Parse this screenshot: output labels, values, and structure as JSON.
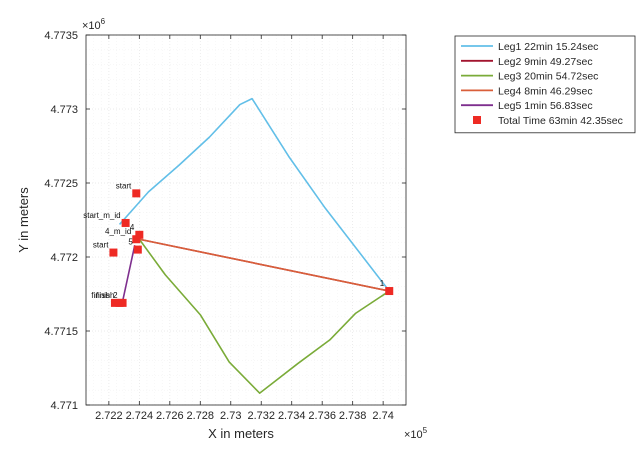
{
  "chart_data": {
    "type": "line",
    "title": "",
    "xlabel": "X in meters",
    "ylabel": "Y in meters",
    "x_exponent_label": "×10",
    "x_exponent": "5",
    "y_exponent_label": "×10",
    "y_exponent": "6",
    "xlim": [
      272050,
      274150
    ],
    "ylim": [
      4771000,
      4773500
    ],
    "grid": true,
    "legend_position": "outside-top-right",
    "x_ticks": [
      {
        "value": 272200,
        "label": "2.722"
      },
      {
        "value": 272400,
        "label": "2.724"
      },
      {
        "value": 272600,
        "label": "2.726"
      },
      {
        "value": 272800,
        "label": "2.728"
      },
      {
        "value": 273000,
        "label": "2.73"
      },
      {
        "value": 273200,
        "label": "2.732"
      },
      {
        "value": 273400,
        "label": "2.734"
      },
      {
        "value": 273600,
        "label": "2.736"
      },
      {
        "value": 273800,
        "label": "2.738"
      },
      {
        "value": 274000,
        "label": "2.74"
      }
    ],
    "y_ticks": [
      {
        "value": 4771000,
        "label": "4.771"
      },
      {
        "value": 4771500,
        "label": "4.7715"
      },
      {
        "value": 4772000,
        "label": "4.772"
      },
      {
        "value": 4772500,
        "label": "4.7725"
      },
      {
        "value": 4773000,
        "label": "4.773"
      },
      {
        "value": 4773500,
        "label": "4.7735"
      }
    ],
    "series": [
      {
        "name": "Leg1 22min 15.24sec",
        "color": "#62bfe8",
        "x": [
          272270,
          272460,
          272660,
          272860,
          273060,
          273140,
          273380,
          273620,
          274040
        ],
        "y": [
          4772220,
          4772440,
          4772620,
          4772810,
          4773030,
          4773070,
          4772680,
          4772330,
          4771770
        ]
      },
      {
        "name": "Leg2 9min 49.27sec",
        "color": "#a2142f",
        "x": [
          274040,
          272400
        ],
        "y": [
          4771770,
          4772120
        ]
      },
      {
        "name": "Leg3 20min 54.72sec",
        "color": "#7aab38",
        "x": [
          272400,
          272570,
          272800,
          272990,
          273190,
          273440,
          273650,
          273820,
          274040
        ],
        "y": [
          4772120,
          4771880,
          4771610,
          4771290,
          4771080,
          4771280,
          4771440,
          4771620,
          4771770
        ]
      },
      {
        "name": "Leg4 8min 46.29sec",
        "color": "#d95f3a",
        "x": [
          274040,
          272400
        ],
        "y": [
          4771770,
          4772120
        ]
      },
      {
        "name": "Leg5 1min 56.83sec",
        "color": "#7e2f8e",
        "x": [
          272370,
          272290
        ],
        "y": [
          4772080,
          4771700
        ]
      }
    ],
    "markers": {
      "name": "Total Time 63min 42.35sec",
      "color": "#ee2a24",
      "points": [
        {
          "x": 272380,
          "y": 4772430,
          "label": "start"
        },
        {
          "x": 272310,
          "y": 4772230,
          "label": "start_m_id"
        },
        {
          "x": 272230,
          "y": 4772030,
          "label": "start"
        },
        {
          "x": 272400,
          "y": 4772150,
          "label": "4"
        },
        {
          "x": 272380,
          "y": 4772120,
          "label": "4_m_id"
        },
        {
          "x": 272390,
          "y": 4772050,
          "label": "5"
        },
        {
          "x": 274040,
          "y": 4771770,
          "label": "1"
        },
        {
          "x": 272240,
          "y": 4771690,
          "label": "finish"
        },
        {
          "x": 272270,
          "y": 4771690,
          "label": "finish"
        },
        {
          "x": 272290,
          "y": 4771690,
          "label": "2"
        }
      ]
    }
  }
}
